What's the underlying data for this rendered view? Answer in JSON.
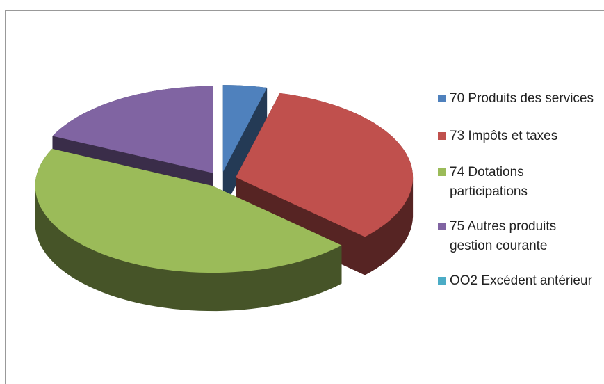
{
  "chart_data": {
    "type": "pie3d",
    "categories": [
      "70 Produits des services",
      "73 Impôts et taxes",
      "74 Dotations participations",
      "75 Autres produits gestion courante",
      "OO2 Excédent antérieur"
    ],
    "values": [
      4,
      33,
      45,
      18,
      0
    ],
    "colors": [
      "#4f81bd",
      "#c0504d",
      "#9bbb59",
      "#8064a2",
      "#4bacc6"
    ],
    "legend": "right"
  }
}
